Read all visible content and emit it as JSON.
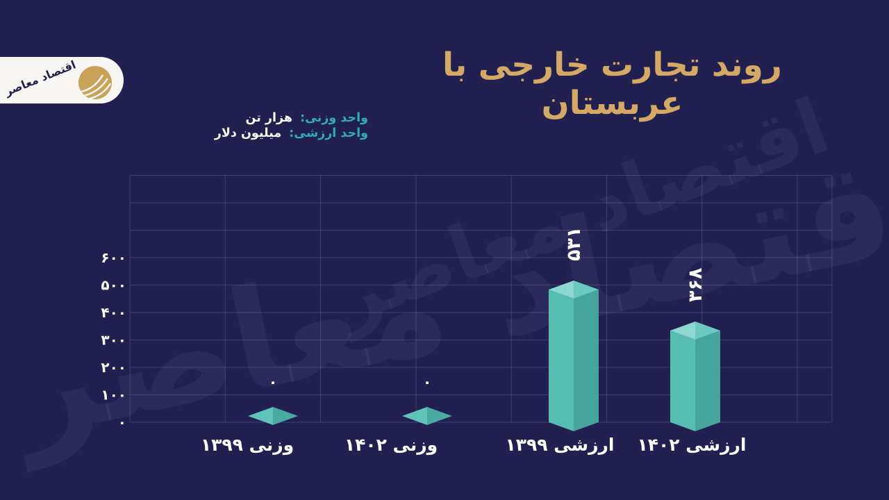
{
  "title": "روند تجارت خارجی با عربستان",
  "logo": {
    "name": "اقتصاد معاصر"
  },
  "watermark": "اقتصاد معاصر",
  "units": [
    {
      "label": "واحد وزنی:",
      "value": "هزار تن"
    },
    {
      "label": "واحد ارزشی:",
      "value": "میلیون دلار"
    }
  ],
  "colors": {
    "background": "#212050",
    "title_gold": "#d3a963",
    "teal_accent": "#2fadbb",
    "text_white": "#ffffff",
    "grid": "rgba(171,174,216,0.22)",
    "bar_left": "#57bcb2",
    "bar_right": "#45a59c",
    "bar_top_left": "#8ad8d0",
    "bar_top_right": "#6cc9c1",
    "zero_top_left": "#5fc3b9",
    "zero_top_right": "#49aba2",
    "watermark": "rgba(190,193,235,0.07)",
    "logo_bg": "#f7f6f2",
    "logo_circle_gold": "#c9a258",
    "logo_text": "#23224f"
  },
  "chart_data": {
    "type": "bar",
    "style": "3d-isometric",
    "title": "روند تجارت خارجی با عربستان",
    "categories": [
      "وزنی ۱۳۹۹",
      "وزنی ۱۴۰۲",
      "ارزشی ۱۳۹۹",
      "ارزشی ۱۴۰۲"
    ],
    "values": [
      0,
      0,
      531,
      368
    ],
    "value_labels": [
      "۰",
      "۰",
      "۵۳۱",
      "۳۶۸"
    ],
    "units_note": [
      "واحد وزنی: هزار تن",
      "واحد ارزشی: میلیون دلار"
    ],
    "xlabel": "",
    "ylabel": "",
    "y_ticks": [
      0,
      100,
      200,
      300,
      400,
      500,
      600
    ],
    "y_tick_labels": [
      "۰",
      "۱۰۰",
      "۲۰۰",
      "۳۰۰",
      "۴۰۰",
      "۵۰۰",
      "۶۰۰"
    ],
    "ylim": [
      0,
      900
    ],
    "grid": true,
    "legend_position": "top-left"
  }
}
